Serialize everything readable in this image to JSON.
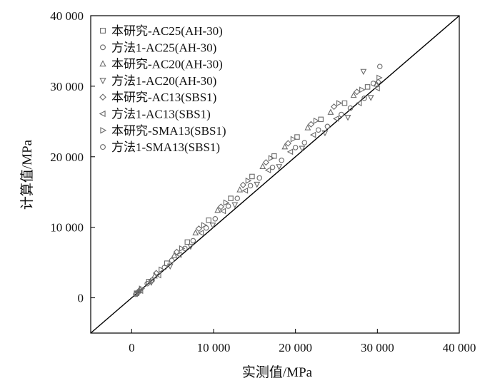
{
  "chart_data": {
    "type": "scatter",
    "title": "",
    "xlabel": "实测值/MPa",
    "ylabel": "计算值/MPa",
    "xlim": [
      -5000,
      40000
    ],
    "ylim": [
      -5000,
      40000
    ],
    "x_ticks": [
      0,
      10000,
      20000,
      30000,
      40000
    ],
    "y_ticks": [
      0,
      10000,
      20000,
      30000,
      40000
    ],
    "x_tick_labels": [
      "0",
      "10 000",
      "20 000",
      "30 000",
      "40 000"
    ],
    "y_tick_labels": [
      "0",
      "10 000",
      "20 000",
      "30 000",
      "40 000"
    ],
    "grid": false,
    "legend_position": "top-left",
    "reference_line": "y = x",
    "colors": {
      "points": "#6a6a6a",
      "axis": "#000000",
      "reference_line": "#000000"
    },
    "series": [
      {
        "name": "本研究-AC25(AH-30)",
        "marker": "square",
        "points": [
          [
            600,
            650
          ],
          [
            2100,
            2300
          ],
          [
            4300,
            4900
          ],
          [
            6800,
            7900
          ],
          [
            9400,
            11000
          ],
          [
            12100,
            14100
          ],
          [
            14700,
            17200
          ],
          [
            17400,
            20100
          ],
          [
            20200,
            22800
          ],
          [
            23100,
            25300
          ],
          [
            26000,
            27600
          ],
          [
            28800,
            29900
          ]
        ]
      },
      {
        "name": "方法1-AC25(AH-30)",
        "marker": "circle",
        "points": [
          [
            800,
            800
          ],
          [
            2500,
            2500
          ],
          [
            4900,
            5300
          ],
          [
            7500,
            8100
          ],
          [
            10200,
            11200
          ],
          [
            12900,
            14100
          ],
          [
            15600,
            17000
          ],
          [
            18300,
            19500
          ],
          [
            21100,
            22000
          ],
          [
            23900,
            24300
          ],
          [
            26700,
            26900
          ],
          [
            29500,
            30400
          ]
        ]
      },
      {
        "name": "本研究-AC20(AH-30)",
        "marker": "triangle-up",
        "points": [
          [
            900,
            1000
          ],
          [
            2800,
            3100
          ],
          [
            5200,
            6000
          ],
          [
            7800,
            9200
          ],
          [
            10500,
            12400
          ],
          [
            13200,
            15300
          ],
          [
            16000,
            18600
          ],
          [
            18700,
            21400
          ],
          [
            21500,
            24100
          ],
          [
            24300,
            26300
          ],
          [
            27100,
            28700
          ],
          [
            29900,
            30300
          ]
        ]
      },
      {
        "name": "方法1-AC20(AH-30)",
        "marker": "triangle-down",
        "points": [
          [
            700,
            600
          ],
          [
            2400,
            2200
          ],
          [
            4700,
            4500
          ],
          [
            7200,
            7300
          ],
          [
            9900,
            10300
          ],
          [
            12600,
            13200
          ],
          [
            15300,
            16100
          ],
          [
            18000,
            18600
          ],
          [
            20800,
            21200
          ],
          [
            23600,
            23400
          ],
          [
            26400,
            25600
          ],
          [
            29200,
            28400
          ],
          [
            28300,
            32100
          ]
        ]
      },
      {
        "name": "本研究-AC13(SBS1)",
        "marker": "diamond",
        "points": [
          [
            1000,
            1100
          ],
          [
            3000,
            3500
          ],
          [
            5500,
            6500
          ],
          [
            8200,
            9800
          ],
          [
            10900,
            12900
          ],
          [
            13600,
            16000
          ],
          [
            16400,
            19200
          ],
          [
            19100,
            21900
          ],
          [
            21900,
            24600
          ],
          [
            24700,
            27100
          ],
          [
            27500,
            29200
          ],
          [
            30100,
            30600
          ]
        ]
      },
      {
        "name": "方法1-AC13(SBS1)",
        "marker": "triangle-left",
        "points": [
          [
            1100,
            1000
          ],
          [
            3300,
            3200
          ],
          [
            5800,
            6100
          ],
          [
            8500,
            9200
          ],
          [
            11200,
            12300
          ],
          [
            13900,
            15200
          ],
          [
            16700,
            18100
          ],
          [
            19400,
            20700
          ],
          [
            22200,
            23100
          ],
          [
            25000,
            25400
          ],
          [
            27800,
            27600
          ],
          [
            30000,
            29700
          ]
        ]
      },
      {
        "name": "本研究-SMA13(SBS1)",
        "marker": "triangle-right",
        "points": [
          [
            1200,
            1300
          ],
          [
            3600,
            4000
          ],
          [
            6100,
            7000
          ],
          [
            8800,
            10300
          ],
          [
            11500,
            13500
          ],
          [
            14200,
            16600
          ],
          [
            17000,
            19800
          ],
          [
            19700,
            22500
          ],
          [
            22500,
            25100
          ],
          [
            25300,
            27600
          ],
          [
            28100,
            29500
          ],
          [
            30200,
            31200
          ]
        ]
      },
      {
        "name": "方法1-SMA13(SBS1)",
        "marker": "circle",
        "points": [
          [
            500,
            500
          ],
          [
            1900,
            2000
          ],
          [
            4000,
            4300
          ],
          [
            6500,
            7000
          ],
          [
            9100,
            9900
          ],
          [
            11800,
            13000
          ],
          [
            14500,
            15900
          ],
          [
            17200,
            18500
          ],
          [
            20000,
            21300
          ],
          [
            22800,
            23800
          ],
          [
            25600,
            26000
          ],
          [
            28400,
            28300
          ],
          [
            30300,
            32800
          ]
        ]
      }
    ]
  }
}
